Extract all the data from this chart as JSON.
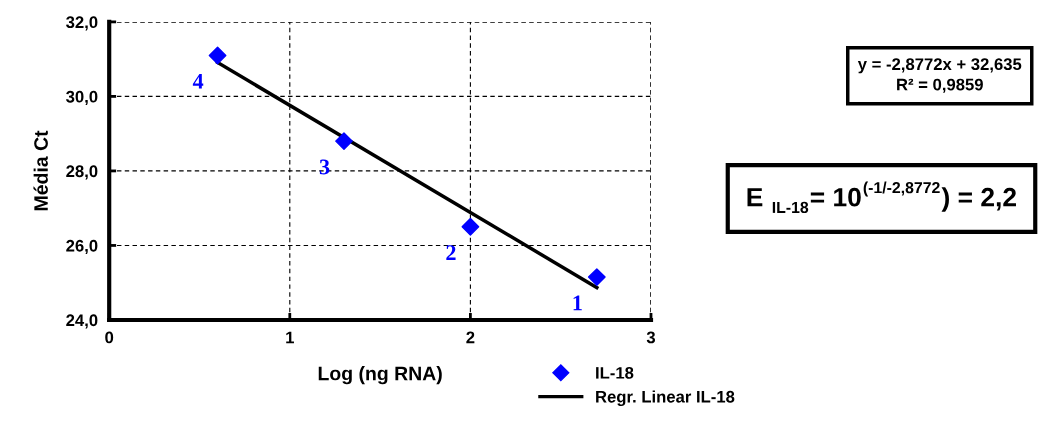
{
  "chart_data": {
    "type": "scatter",
    "xlabel": "Log (ng RNA)",
    "ylabel": "Média Ct",
    "xlim": [
      0,
      3
    ],
    "xticks": [
      0,
      1,
      2,
      3
    ],
    "ylim": [
      24,
      32
    ],
    "yticks": [
      {
        "value": 24,
        "label": "24,0"
      },
      {
        "value": 26,
        "label": "26,0"
      },
      {
        "value": 28,
        "label": "28,0"
      },
      {
        "value": 30,
        "label": "30,0"
      },
      {
        "value": 32,
        "label": "32,0"
      }
    ],
    "grid": true,
    "legend": "bottom right",
    "series": [
      {
        "name": "IL-18",
        "marker": "diamond",
        "color": "#0000ff",
        "x": [
          0.6,
          1.3,
          2.0,
          2.7
        ],
        "values": [
          31.1,
          28.8,
          26.5,
          25.15
        ]
      },
      {
        "name": "Regr. Linear IL-18",
        "type": "line",
        "marker": "none",
        "color": "#000000",
        "x": [
          0.6,
          2.7
        ],
        "values": [
          30.91,
          24.87
        ]
      }
    ],
    "annotations": [
      {
        "text": "4",
        "x": 0.6,
        "y": 31.1
      },
      {
        "text": "3",
        "x": 1.3,
        "y": 28.8
      },
      {
        "text": "2",
        "x": 2.0,
        "y": 26.5
      },
      {
        "text": "1",
        "x": 2.7,
        "y": 25.15
      },
      "y = -2,8772x + 32,635\nR² = 0,9859",
      "E $_{IL-18}$= 10$^{(-1/-2,8772}$) = 2,2"
    ]
  }
}
